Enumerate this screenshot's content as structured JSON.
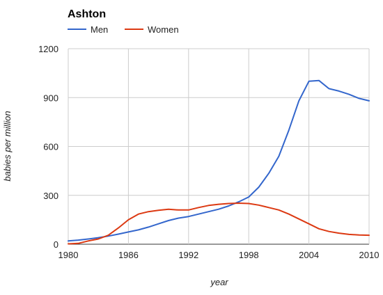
{
  "chart_data": {
    "type": "line",
    "title": "Ashton",
    "xlabel": "year",
    "ylabel": "babies per million",
    "xlim": [
      1980,
      2010
    ],
    "ylim": [
      0,
      1200
    ],
    "x_ticks": [
      "1980",
      "1986",
      "1992",
      "1998",
      "2004",
      "2010"
    ],
    "x_tick_values": [
      1980,
      1986,
      1992,
      1998,
      2004,
      2010
    ],
    "y_ticks": [
      "0",
      "300",
      "600",
      "900",
      "1200"
    ],
    "y_tick_values": [
      0,
      300,
      600,
      900,
      1200
    ],
    "grid": true,
    "legend_position": "top-left",
    "x": [
      1980,
      1981,
      1982,
      1983,
      1984,
      1985,
      1986,
      1987,
      1988,
      1989,
      1990,
      1991,
      1992,
      1993,
      1994,
      1995,
      1996,
      1997,
      1998,
      1999,
      2000,
      2001,
      2002,
      2003,
      2004,
      2005,
      2006,
      2007,
      2008,
      2009,
      2010
    ],
    "series": [
      {
        "name": "Men",
        "color": "#3366cc",
        "values": [
          20,
          25,
          32,
          40,
          50,
          62,
          75,
          88,
          105,
          125,
          145,
          160,
          170,
          185,
          200,
          215,
          235,
          260,
          290,
          350,
          435,
          540,
          700,
          880,
          1000,
          1005,
          955,
          940,
          920,
          895,
          880
        ]
      },
      {
        "name": "Women",
        "color": "#dc3912",
        "values": [
          2,
          5,
          20,
          32,
          55,
          100,
          150,
          185,
          200,
          208,
          215,
          210,
          210,
          225,
          238,
          245,
          250,
          252,
          250,
          240,
          225,
          210,
          185,
          155,
          125,
          95,
          78,
          68,
          60,
          57,
          55
        ]
      }
    ]
  }
}
